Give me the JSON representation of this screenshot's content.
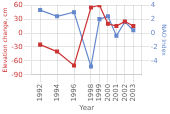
{
  "chart_data": {
    "type": "line",
    "x": [
      1992,
      1994,
      1996,
      1998,
      1999,
      2000,
      2001,
      2002,
      2003
    ],
    "xlabel": "Year",
    "ylabel": "Elevation change, cm",
    "y2label": "NAO Index",
    "series": [
      {
        "color": "#cc3333",
        "marker": "square",
        "values": [
          -25,
          -40,
          -70,
          55,
          60,
          20,
          15,
          25,
          15
        ]
      },
      {
        "color": "#6688cc",
        "marker": "square",
        "axis": "y2",
        "values": [
          3.3,
          2.4,
          3.0,
          -4.8,
          2.0,
          2.4,
          -0.4,
          1.6,
          0.4
        ]
      }
    ],
    "xlim": [
      1991,
      2004
    ],
    "xticks": [
      1992,
      1994,
      1996,
      1998,
      1999,
      2000,
      2001,
      2002,
      2003
    ],
    "ylim": [
      -90,
      60
    ],
    "yticks": [
      -90,
      -60,
      -30,
      0,
      30,
      60
    ],
    "y2lim": [
      -6,
      4
    ],
    "y2ticks": [
      -4,
      -2,
      0,
      2,
      4
    ],
    "grid": true
  }
}
